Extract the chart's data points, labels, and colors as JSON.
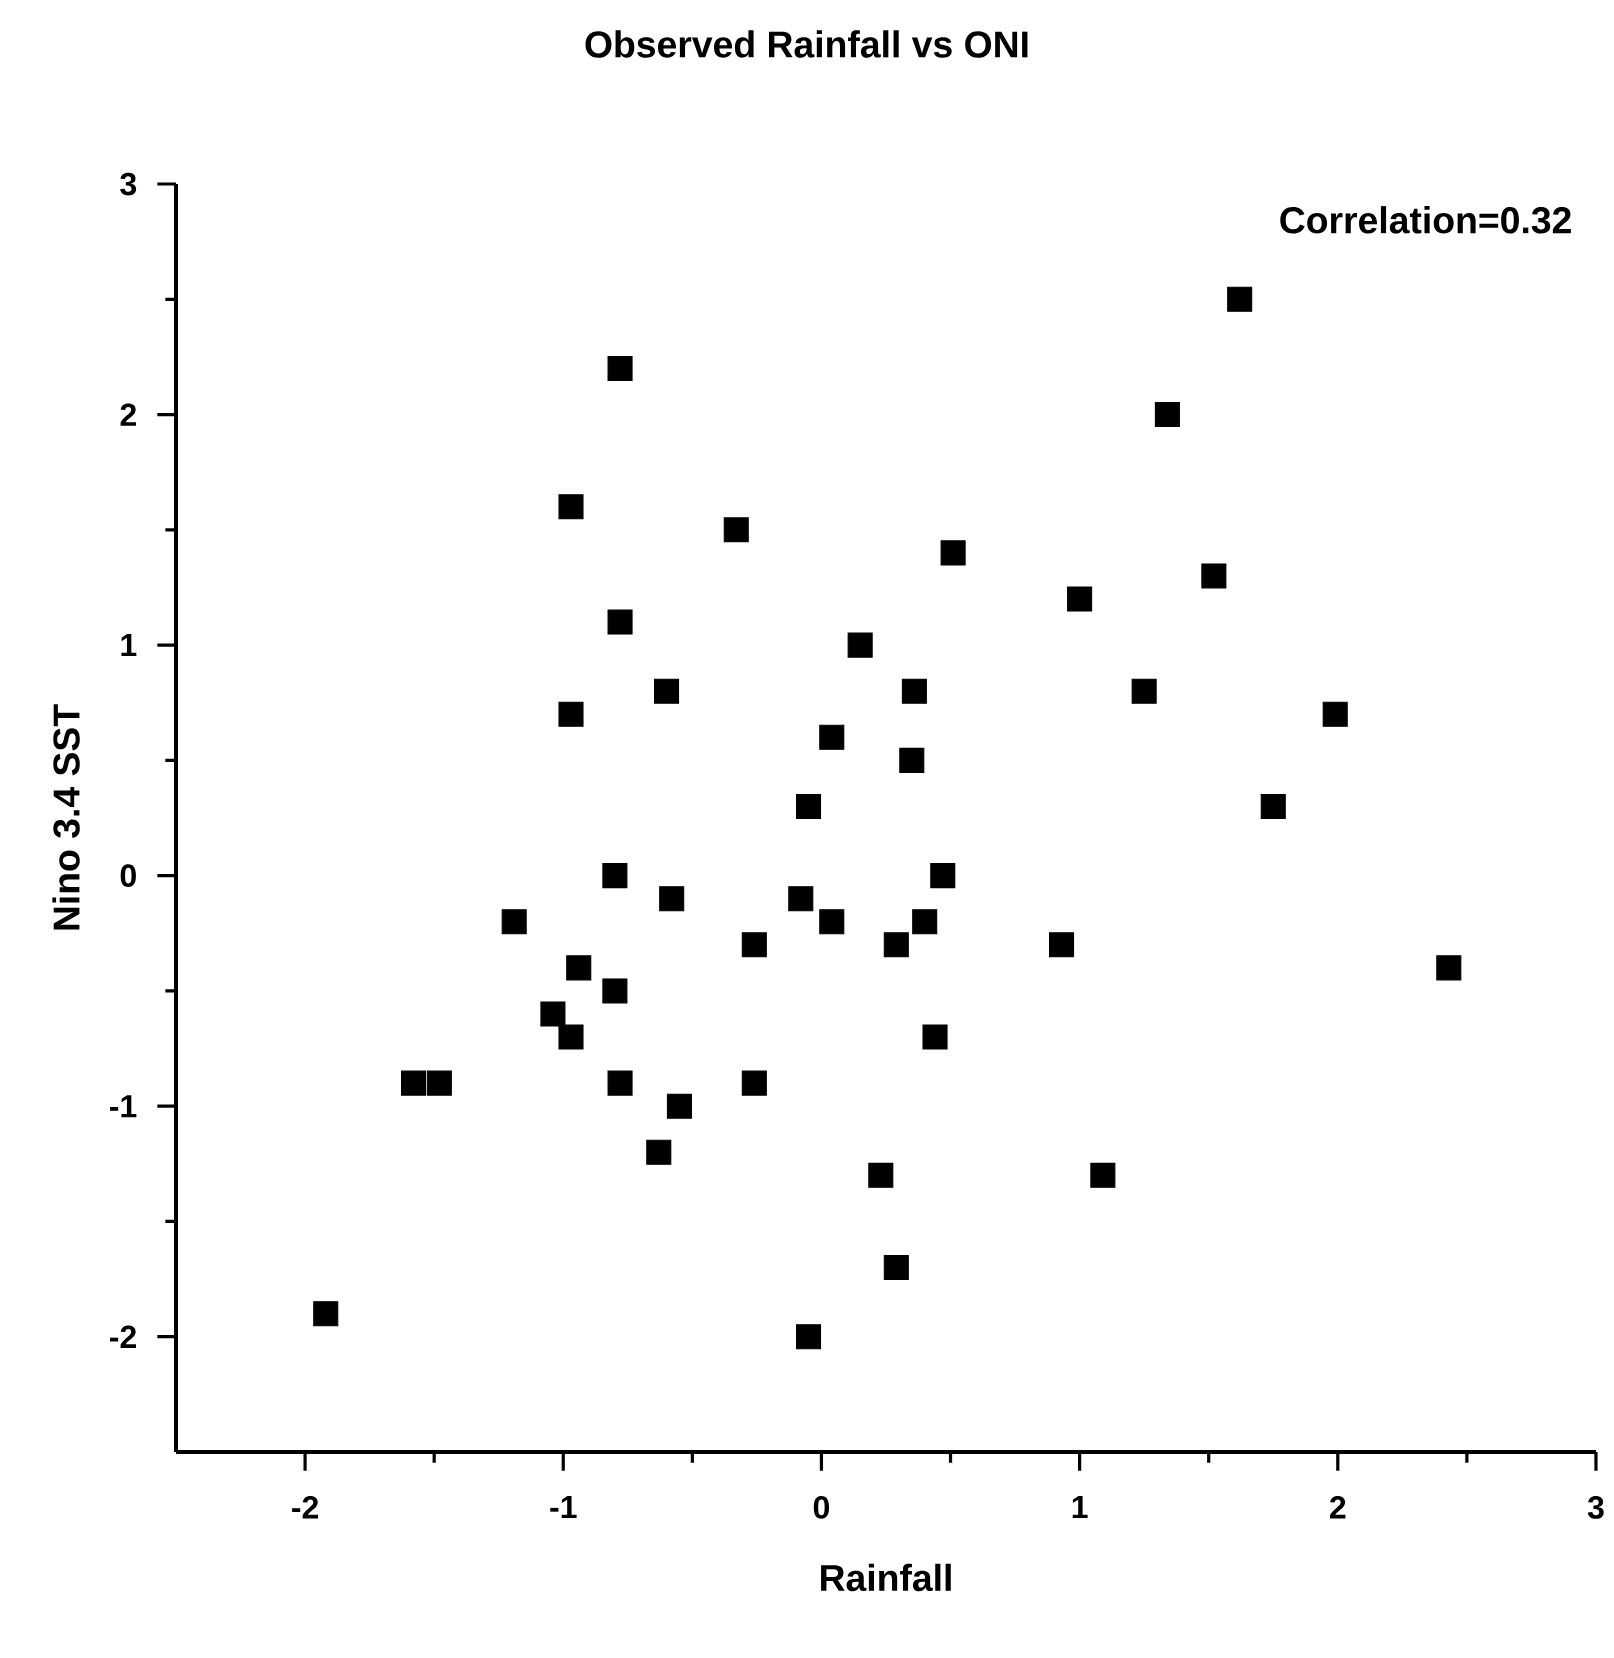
{
  "chart_data": {
    "type": "scatter",
    "title": "Observed Rainfall vs ONI",
    "xlabel": "Rainfall",
    "ylabel": "Nino 3.4 SST",
    "annotations": [
      "Correlation=0.32"
    ],
    "marker": "square",
    "grid": false,
    "xlim": [
      -2.5,
      3
    ],
    "ylim": [
      -2.5,
      3
    ],
    "xticks": [
      -2,
      -1,
      0,
      1,
      2,
      3
    ],
    "yticks": [
      -2,
      -1,
      0,
      1,
      2,
      3
    ],
    "series": [
      {
        "color": "#000000",
        "x": [
          1.62,
          1.34,
          -0.78,
          -0.97,
          -0.33,
          0.51,
          -0.78,
          1.52,
          1.0,
          0.15,
          -0.97,
          -0.6,
          0.36,
          1.25,
          1.99,
          0.04,
          0.35,
          -0.05,
          1.75,
          -0.8,
          0.47,
          -0.58,
          -0.08,
          -1.19,
          0.04,
          0.4,
          -0.94,
          -0.26,
          0.29,
          0.93,
          2.43,
          -0.8,
          -1.04,
          -0.97,
          0.44,
          -1.58,
          -1.48,
          -0.78,
          -0.26,
          -0.55,
          -0.63,
          0.23,
          1.09,
          0.29,
          -1.92,
          -0.05
        ],
        "values": [
          2.5,
          2.0,
          2.2,
          1.6,
          1.5,
          1.4,
          1.1,
          1.3,
          1.2,
          1.0,
          0.7,
          0.8,
          0.8,
          0.8,
          0.7,
          0.6,
          0.5,
          0.3,
          0.3,
          0.0,
          0.0,
          -0.1,
          -0.1,
          -0.2,
          -0.2,
          -0.2,
          -0.4,
          -0.3,
          -0.3,
          -0.3,
          -0.4,
          -0.5,
          -0.6,
          -0.7,
          -0.7,
          -0.9,
          -0.9,
          -0.9,
          -0.9,
          -1.0,
          -1.2,
          -1.3,
          -1.3,
          -1.7,
          -1.9,
          -2.0
        ]
      }
    ]
  }
}
